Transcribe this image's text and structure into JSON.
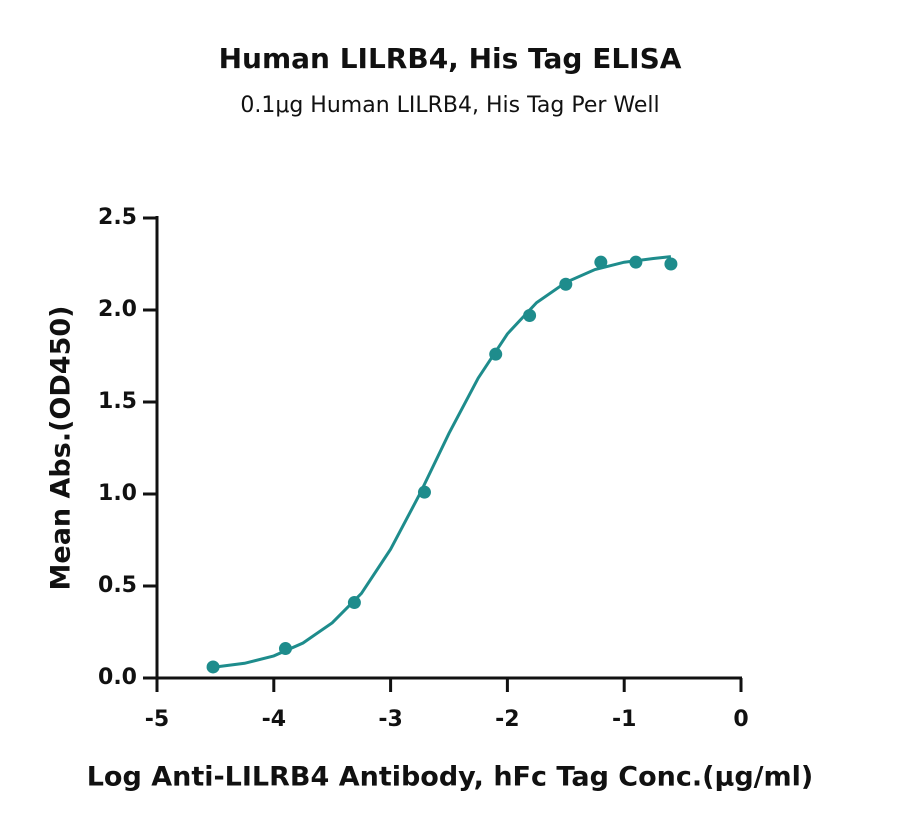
{
  "chart_data": {
    "type": "scatter",
    "title": "Human LILRB4, His Tag ELISA",
    "subtitle": "0.1μg Human LILRB4, His Tag Per Well",
    "x_label": "Log Anti-LILRB4 Antibody, hFc Tag Conc.(μg/ml)",
    "y_label": "Mean Abs.(OD450)",
    "color": "#1e8c8c",
    "x": [
      -4.52,
      -3.9,
      -3.31,
      -2.71,
      -2.1,
      -1.81,
      -1.5,
      -1.2,
      -0.9,
      -0.6
    ],
    "values": [
      0.06,
      0.16,
      0.41,
      1.01,
      1.76,
      1.97,
      2.14,
      2.26,
      2.26,
      2.25
    ],
    "fit_line": {
      "x": [
        -4.5,
        -4.25,
        -4,
        -3.75,
        -3.5,
        -3.25,
        -3,
        -2.75,
        -2.5,
        -2.25,
        -2,
        -1.75,
        -1.5,
        -1.25,
        -1,
        -0.75,
        -0.6
      ],
      "values": [
        0.06,
        0.08,
        0.12,
        0.19,
        0.3,
        0.46,
        0.7,
        1.0,
        1.33,
        1.63,
        1.87,
        2.04,
        2.15,
        2.22,
        2.26,
        2.28,
        2.29
      ]
    },
    "xlim": [
      -5,
      0
    ],
    "xticks": [
      -5,
      -4,
      -3,
      -2,
      -1,
      0
    ],
    "ylim": [
      0,
      2.5
    ],
    "yticks": [
      {
        "value": 0,
        "label": "0.0"
      },
      {
        "value": 0.5,
        "label": "0.5"
      },
      {
        "value": 1,
        "label": "1.0"
      },
      {
        "value": 1.5,
        "label": "1.5"
      },
      {
        "value": 2,
        "label": "2.0"
      },
      {
        "value": 2.5,
        "label": "2.5"
      }
    ]
  }
}
